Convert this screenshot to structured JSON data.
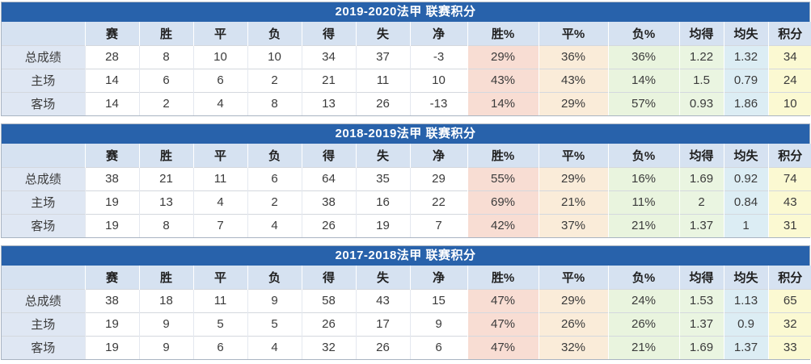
{
  "colors": {
    "title_bg": "#2862AB",
    "title_text": "#ffffff",
    "header_bg": "#d6e2f1",
    "label_bg": "#dfe7f3",
    "win_pct_bg": "#f8ddd3",
    "draw_pct_bg": "#faecd9",
    "loss_pct_bg": "#e9f4de",
    "avg_for_bg": "#eaf5e1",
    "avg_against_bg": "#dcedf4",
    "points_bg": "#fbf9d2",
    "cell_text": "#3b3b3b",
    "header_text": "#1f1f1f"
  },
  "columns": [
    {
      "key": "label",
      "label": ""
    },
    {
      "key": "games",
      "label": "赛"
    },
    {
      "key": "wins",
      "label": "胜"
    },
    {
      "key": "draws",
      "label": "平"
    },
    {
      "key": "losses",
      "label": "负"
    },
    {
      "key": "goals_for",
      "label": "得"
    },
    {
      "key": "goals_against",
      "label": "失"
    },
    {
      "key": "goal_diff",
      "label": "净"
    },
    {
      "key": "win_pct",
      "label": "胜%"
    },
    {
      "key": "draw_pct",
      "label": "平%"
    },
    {
      "key": "loss_pct",
      "label": "负%"
    },
    {
      "key": "avg_for",
      "label": "均得"
    },
    {
      "key": "avg_against",
      "label": "均失"
    },
    {
      "key": "points",
      "label": "积分"
    }
  ],
  "tables": [
    {
      "title": "2019-2020法甲 联赛积分",
      "rows": [
        {
          "label": "总成绩",
          "values": [
            "28",
            "8",
            "10",
            "10",
            "34",
            "37",
            "-3",
            "29%",
            "36%",
            "36%",
            "1.22",
            "1.32",
            "34"
          ]
        },
        {
          "label": "主场",
          "values": [
            "14",
            "6",
            "6",
            "2",
            "21",
            "11",
            "10",
            "43%",
            "43%",
            "14%",
            "1.5",
            "0.79",
            "24"
          ]
        },
        {
          "label": "客场",
          "values": [
            "14",
            "2",
            "4",
            "8",
            "13",
            "26",
            "-13",
            "14%",
            "29%",
            "57%",
            "0.93",
            "1.86",
            "10"
          ]
        }
      ]
    },
    {
      "title": "2018-2019法甲 联赛积分",
      "rows": [
        {
          "label": "总成绩",
          "values": [
            "38",
            "21",
            "11",
            "6",
            "64",
            "35",
            "29",
            "55%",
            "29%",
            "16%",
            "1.69",
            "0.92",
            "74"
          ]
        },
        {
          "label": "主场",
          "values": [
            "19",
            "13",
            "4",
            "2",
            "38",
            "16",
            "22",
            "69%",
            "21%",
            "11%",
            "2",
            "0.84",
            "43"
          ]
        },
        {
          "label": "客场",
          "values": [
            "19",
            "8",
            "7",
            "4",
            "26",
            "19",
            "7",
            "42%",
            "37%",
            "21%",
            "1.37",
            "1",
            "31"
          ]
        }
      ]
    },
    {
      "title": "2017-2018法甲 联赛积分",
      "rows": [
        {
          "label": "总成绩",
          "values": [
            "38",
            "18",
            "11",
            "9",
            "58",
            "43",
            "15",
            "47%",
            "29%",
            "24%",
            "1.53",
            "1.13",
            "65"
          ]
        },
        {
          "label": "主场",
          "values": [
            "19",
            "9",
            "5",
            "5",
            "26",
            "17",
            "9",
            "47%",
            "26%",
            "26%",
            "1.37",
            "0.9",
            "32"
          ]
        },
        {
          "label": "客场",
          "values": [
            "19",
            "9",
            "6",
            "4",
            "32",
            "26",
            "6",
            "47%",
            "32%",
            "21%",
            "1.69",
            "1.37",
            "33"
          ]
        }
      ]
    }
  ]
}
